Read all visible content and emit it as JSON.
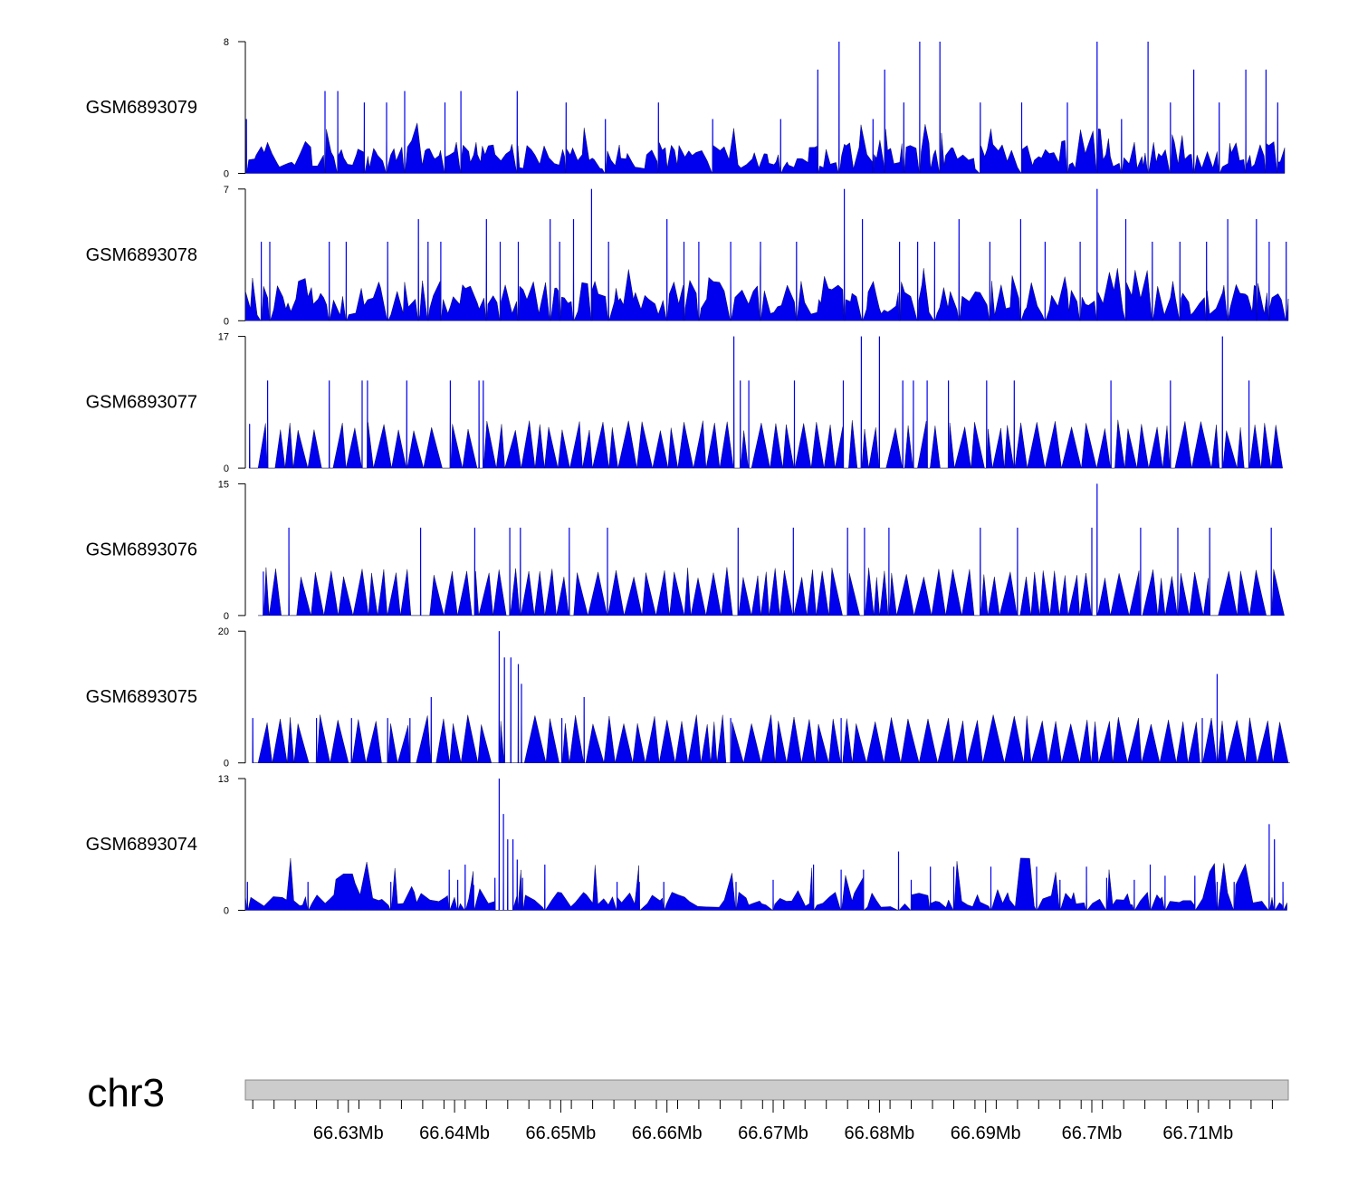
{
  "chart_data": {
    "type": "area",
    "color": "#0000ee",
    "chromosome": "chr3",
    "x_range_mb": [
      66.6203,
      66.7185
    ],
    "x_ticks": [
      {
        "value": 66.63,
        "label": "66.63Mb"
      },
      {
        "value": 66.64,
        "label": "66.64Mb"
      },
      {
        "value": 66.65,
        "label": "66.65Mb"
      },
      {
        "value": 66.66,
        "label": "66.66Mb"
      },
      {
        "value": 66.67,
        "label": "66.67Mb"
      },
      {
        "value": 66.68,
        "label": "66.68Mb"
      },
      {
        "value": 66.69,
        "label": "66.69Mb"
      },
      {
        "value": 66.7,
        "label": "66.7Mb"
      },
      {
        "value": 66.71,
        "label": "66.71Mb"
      }
    ],
    "tracks": [
      {
        "name": "GSM6893079",
        "ylim": [
          0,
          8
        ],
        "ytick_labels": [
          "0",
          "8"
        ],
        "style": "dense",
        "base": 1.1,
        "gap": 0.00038,
        "peaks": [
          [
            66.6204,
            3.3
          ],
          [
            66.6278,
            5.0
          ],
          [
            66.629,
            5.0
          ],
          [
            66.6315,
            4.3
          ],
          [
            66.6336,
            4.3
          ],
          [
            66.6353,
            5.0
          ],
          [
            66.6391,
            4.3
          ],
          [
            66.6406,
            5.0
          ],
          [
            66.6459,
            5.0
          ],
          [
            66.6505,
            4.3
          ],
          [
            66.6542,
            3.3
          ],
          [
            66.6592,
            4.3
          ],
          [
            66.6643,
            3.3
          ],
          [
            66.6707,
            3.3
          ],
          [
            66.6742,
            6.3
          ],
          [
            66.6762,
            8.0
          ],
          [
            66.6794,
            3.3
          ],
          [
            66.6805,
            6.3
          ],
          [
            66.6823,
            4.3
          ],
          [
            66.6838,
            8.0
          ],
          [
            66.6857,
            8.0
          ],
          [
            66.6895,
            4.3
          ],
          [
            66.6934,
            4.3
          ],
          [
            66.6977,
            4.3
          ],
          [
            66.7005,
            8.0
          ],
          [
            66.7028,
            3.3
          ],
          [
            66.7053,
            8.0
          ],
          [
            66.7074,
            4.3
          ],
          [
            66.7096,
            6.3
          ],
          [
            66.712,
            4.3
          ],
          [
            66.7145,
            6.3
          ],
          [
            66.7164,
            6.3
          ],
          [
            66.7175,
            4.3
          ]
        ]
      },
      {
        "name": "GSM6893078",
        "ylim": [
          0,
          7
        ],
        "ytick_labels": [
          "0",
          "7"
        ],
        "style": "dense",
        "base": 1.2,
        "gap": 0.00045,
        "peaks": [
          [
            66.6218,
            4.2
          ],
          [
            66.6226,
            4.2
          ],
          [
            66.6282,
            4.2
          ],
          [
            66.6298,
            4.2
          ],
          [
            66.6337,
            4.2
          ],
          [
            66.6366,
            5.4
          ],
          [
            66.6375,
            4.2
          ],
          [
            66.6387,
            4.2
          ],
          [
            66.643,
            5.4
          ],
          [
            66.6443,
            4.2
          ],
          [
            66.646,
            4.2
          ],
          [
            66.649,
            5.4
          ],
          [
            66.6499,
            4.2
          ],
          [
            66.6512,
            5.4
          ],
          [
            66.6529,
            7.0
          ],
          [
            66.6545,
            4.2
          ],
          [
            66.66,
            5.4
          ],
          [
            66.6616,
            4.2
          ],
          [
            66.663,
            4.2
          ],
          [
            66.666,
            4.2
          ],
          [
            66.6688,
            4.2
          ],
          [
            66.6722,
            4.2
          ],
          [
            66.6767,
            7.0
          ],
          [
            66.6784,
            5.4
          ],
          [
            66.6819,
            4.2
          ],
          [
            66.6836,
            4.2
          ],
          [
            66.6852,
            4.2
          ],
          [
            66.6875,
            5.4
          ],
          [
            66.6904,
            4.2
          ],
          [
            66.6933,
            5.4
          ],
          [
            66.6956,
            4.2
          ],
          [
            66.6989,
            4.2
          ],
          [
            66.7005,
            7.0
          ],
          [
            66.7032,
            5.4
          ],
          [
            66.7057,
            4.2
          ],
          [
            66.7083,
            4.2
          ],
          [
            66.7108,
            4.2
          ],
          [
            66.7128,
            5.4
          ],
          [
            66.7155,
            5.4
          ],
          [
            66.7167,
            4.2
          ],
          [
            66.7183,
            4.2
          ]
        ]
      },
      {
        "name": "GSM6893077",
        "ylim": [
          0,
          17
        ],
        "ytick_labels": [
          "0",
          "17"
        ],
        "style": "sparse",
        "base": 0,
        "gap": 0.00085,
        "peaks": [
          [
            66.6207,
            5.7
          ],
          [
            66.6224,
            11.3
          ],
          [
            66.6282,
            11.3
          ],
          [
            66.6313,
            11.3
          ],
          [
            66.6318,
            11.3
          ],
          [
            66.6355,
            11.3
          ],
          [
            66.6396,
            11.3
          ],
          [
            66.6423,
            11.3
          ],
          [
            66.6427,
            11.3
          ],
          [
            66.6663,
            17.0
          ],
          [
            66.6669,
            11.3
          ],
          [
            66.6677,
            11.3
          ],
          [
            66.672,
            11.3
          ],
          [
            66.6766,
            11.3
          ],
          [
            66.6783,
            17.0
          ],
          [
            66.68,
            17.0
          ],
          [
            66.6822,
            11.3
          ],
          [
            66.6832,
            11.3
          ],
          [
            66.6845,
            11.3
          ],
          [
            66.6865,
            11.3
          ],
          [
            66.6901,
            11.3
          ],
          [
            66.6927,
            11.3
          ],
          [
            66.7018,
            11.3
          ],
          [
            66.7074,
            11.3
          ],
          [
            66.7123,
            17.0
          ],
          [
            66.7148,
            11.3
          ]
        ]
      },
      {
        "name": "GSM6893076",
        "ylim": [
          0,
          15
        ],
        "ytick_labels": [
          "0",
          "15"
        ],
        "style": "sparse",
        "base": 0,
        "gap": 0.00085,
        "peaks": [
          [
            66.622,
            5.0
          ],
          [
            66.6244,
            10.0
          ],
          [
            66.6368,
            10.0
          ],
          [
            66.6419,
            10.0
          ],
          [
            66.6452,
            10.0
          ],
          [
            66.6462,
            10.0
          ],
          [
            66.6508,
            10.0
          ],
          [
            66.6544,
            10.0
          ],
          [
            66.6667,
            10.0
          ],
          [
            66.6719,
            10.0
          ],
          [
            66.677,
            10.0
          ],
          [
            66.6786,
            10.0
          ],
          [
            66.6809,
            10.0
          ],
          [
            66.6895,
            10.0
          ],
          [
            66.693,
            10.0
          ],
          [
            66.7,
            10.0
          ],
          [
            66.7005,
            15.0
          ],
          [
            66.7046,
            10.0
          ],
          [
            66.7081,
            10.0
          ],
          [
            66.7111,
            10.0
          ],
          [
            66.7169,
            10.0
          ]
        ]
      },
      {
        "name": "GSM6893075",
        "ylim": [
          0,
          20
        ],
        "ytick_labels": [
          "0",
          "20"
        ],
        "style": "sparse",
        "base": 0,
        "gap": 0.0009,
        "peaks": [
          [
            66.621,
            6.8
          ],
          [
            66.627,
            6.8
          ],
          [
            66.6303,
            6.8
          ],
          [
            66.6337,
            6.8
          ],
          [
            66.6358,
            6.8
          ],
          [
            66.6378,
            10.0
          ],
          [
            66.6442,
            20.0
          ],
          [
            66.6447,
            16.0
          ],
          [
            66.6453,
            16.0
          ],
          [
            66.646,
            15.0
          ],
          [
            66.6463,
            12.0
          ],
          [
            66.6501,
            6.8
          ],
          [
            66.6522,
            10.0
          ],
          [
            66.666,
            6.8
          ],
          [
            66.6764,
            6.8
          ],
          [
            66.7104,
            6.8
          ],
          [
            66.7118,
            13.5
          ]
        ]
      },
      {
        "name": "GSM6893074",
        "ylim": [
          0,
          13
        ],
        "ytick_labels": [
          "0",
          "13"
        ],
        "style": "dense",
        "base": 1.0,
        "gap": 0.0006,
        "peaks": [
          [
            66.6205,
            2.8
          ],
          [
            66.6262,
            2.8
          ],
          [
            66.634,
            2.8
          ],
          [
            66.6395,
            4.0
          ],
          [
            66.6403,
            3.0
          ],
          [
            66.641,
            4.5
          ],
          [
            66.6418,
            2.5
          ],
          [
            66.6438,
            3.2
          ],
          [
            66.6442,
            13.0
          ],
          [
            66.6446,
            9.5
          ],
          [
            66.645,
            7.0
          ],
          [
            66.6455,
            7.0
          ],
          [
            66.6459,
            5.0
          ],
          [
            66.6464,
            3.2
          ],
          [
            66.6485,
            4.5
          ],
          [
            66.6553,
            2.8
          ],
          [
            66.6574,
            2.8
          ],
          [
            66.6597,
            2.8
          ],
          [
            66.6665,
            2.8
          ],
          [
            66.67,
            3.0
          ],
          [
            66.6738,
            4.5
          ],
          [
            66.6764,
            4.0
          ],
          [
            66.6785,
            4.0
          ],
          [
            66.6818,
            5.8
          ],
          [
            66.683,
            3.0
          ],
          [
            66.6848,
            4.3
          ],
          [
            66.687,
            4.3
          ],
          [
            66.6905,
            4.3
          ],
          [
            66.6948,
            4.3
          ],
          [
            66.697,
            3.0
          ],
          [
            66.6995,
            4.3
          ],
          [
            66.7014,
            3.2
          ],
          [
            66.704,
            3.0
          ],
          [
            66.7055,
            4.5
          ],
          [
            66.7069,
            3.4
          ],
          [
            66.7097,
            3.4
          ],
          [
            66.7118,
            2.8
          ],
          [
            66.7134,
            2.8
          ],
          [
            66.7167,
            8.5
          ],
          [
            66.7172,
            7.0
          ],
          [
            66.718,
            2.8
          ]
        ]
      }
    ]
  }
}
